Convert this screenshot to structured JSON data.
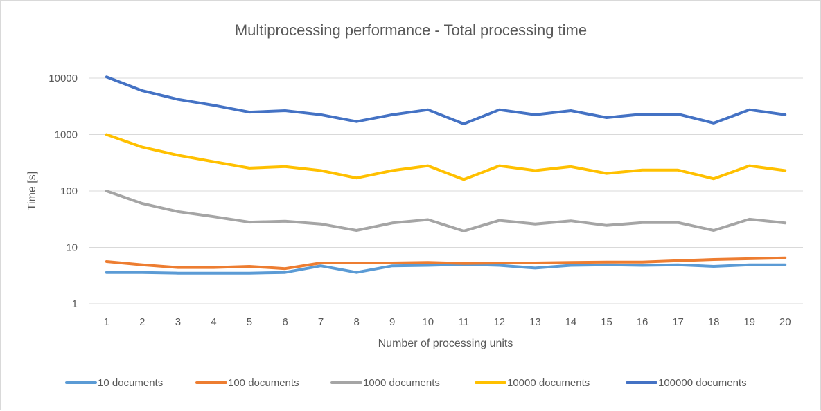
{
  "chart_data": {
    "type": "line",
    "title": "Multiprocessing performance - Total processing time",
    "xlabel": "Number of processing units",
    "ylabel": "Time [s]",
    "y_scale": "log",
    "ylim": [
      1,
      10000
    ],
    "y_ticks": [
      "1",
      "10",
      "100",
      "1000",
      "10000"
    ],
    "grid": "horizontal",
    "legend_position": "bottom",
    "x": [
      "1",
      "2",
      "3",
      "4",
      "5",
      "6",
      "7",
      "8",
      "9",
      "10",
      "11",
      "12",
      "13",
      "14",
      "15",
      "16",
      "17",
      "18",
      "19",
      "20"
    ],
    "series": [
      {
        "name": "10 documents",
        "color": "#5b9bd5",
        "values": [
          3.6,
          3.6,
          3.5,
          3.5,
          3.5,
          3.6,
          4.7,
          3.6,
          4.7,
          4.8,
          5.0,
          4.8,
          4.3,
          4.8,
          4.9,
          4.8,
          4.9,
          4.6,
          4.9,
          4.9
        ]
      },
      {
        "name": "100 documents",
        "color": "#ed7d31",
        "values": [
          5.6,
          4.9,
          4.4,
          4.4,
          4.6,
          4.2,
          5.3,
          5.3,
          5.3,
          5.4,
          5.2,
          5.3,
          5.3,
          5.4,
          5.5,
          5.5,
          5.8,
          6.1,
          6.3,
          6.5
        ]
      },
      {
        "name": "1000 documents",
        "color": "#a5a5a5",
        "values": [
          100,
          60,
          43,
          35,
          28,
          29,
          26,
          20,
          27,
          31,
          19.5,
          30,
          26,
          29.5,
          24.5,
          27.5,
          27.5,
          20,
          31.5,
          27
        ]
      },
      {
        "name": "10000 documents",
        "color": "#ffc000",
        "values": [
          1000,
          600,
          430,
          330,
          255,
          270,
          230,
          170,
          230,
          280,
          160,
          280,
          230,
          270,
          205,
          235,
          235,
          165,
          280,
          230
        ]
      },
      {
        "name": "100000 documents",
        "color": "#4472c4",
        "values": [
          10500,
          6000,
          4200,
          3300,
          2500,
          2650,
          2250,
          1700,
          2250,
          2750,
          1550,
          2750,
          2250,
          2650,
          2000,
          2300,
          2300,
          1600,
          2750,
          2250
        ]
      }
    ]
  }
}
